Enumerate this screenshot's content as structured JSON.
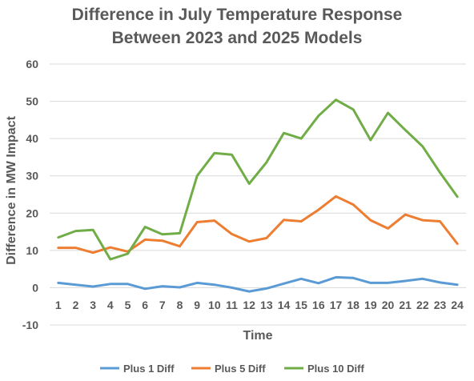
{
  "chart_data": {
    "type": "line",
    "title_line1": "Difference in July Temperature Response",
    "title_line2": "Between 2023 and 2025 Models",
    "xlabel": "Time",
    "ylabel": "Difference in MW Impact",
    "x": [
      1,
      2,
      3,
      4,
      5,
      6,
      7,
      8,
      9,
      10,
      11,
      12,
      13,
      14,
      15,
      16,
      17,
      18,
      19,
      20,
      21,
      22,
      23,
      24
    ],
    "ylim": [
      -10,
      60
    ],
    "yticks": [
      -10,
      0,
      10,
      20,
      30,
      40,
      50,
      60
    ],
    "grid": true,
    "legend_position": "bottom",
    "series": [
      {
        "name": "Plus 1 Diff",
        "color": "#5b9bd5",
        "values": [
          1.3,
          0.8,
          0.3,
          1.0,
          1.0,
          -0.3,
          0.4,
          0.1,
          1.3,
          0.8,
          0.0,
          -1.0,
          -0.2,
          1.1,
          2.4,
          1.2,
          2.8,
          2.6,
          1.3,
          1.3,
          1.8,
          2.4,
          1.4,
          0.8
        ]
      },
      {
        "name": "Plus 5 Diff",
        "color": "#ed7d31",
        "values": [
          10.7,
          10.7,
          9.4,
          10.8,
          9.7,
          12.9,
          12.6,
          11.1,
          17.6,
          18.0,
          14.4,
          12.4,
          13.3,
          18.2,
          17.8,
          20.9,
          24.5,
          22.3,
          18.1,
          15.9,
          19.6,
          18.1,
          17.8,
          11.8
        ]
      },
      {
        "name": "Plus 10 Diff",
        "color": "#70ad47",
        "values": [
          13.5,
          15.2,
          15.5,
          7.6,
          9.1,
          16.3,
          14.3,
          14.6,
          30.0,
          36.1,
          35.7,
          27.9,
          33.6,
          41.5,
          40.0,
          46.1,
          50.4,
          47.8,
          39.6,
          46.9,
          42.3,
          37.9,
          30.9,
          24.4
        ]
      }
    ]
  }
}
